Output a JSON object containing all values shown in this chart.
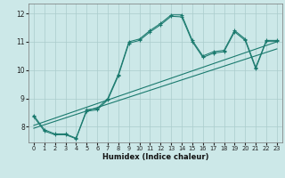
{
  "xlabel": "Humidex (Indice chaleur)",
  "xlim": [
    -0.5,
    23.5
  ],
  "ylim": [
    7.45,
    12.35
  ],
  "xticks": [
    0,
    1,
    2,
    3,
    4,
    5,
    6,
    7,
    8,
    9,
    10,
    11,
    12,
    13,
    14,
    15,
    16,
    17,
    18,
    19,
    20,
    21,
    22,
    23
  ],
  "yticks": [
    8,
    9,
    10,
    11,
    12
  ],
  "bg_color": "#cce8e8",
  "line_color": "#1a7a6e",
  "grid_color": "#aacccc",
  "curve1": {
    "x": [
      0,
      1,
      2,
      3,
      4,
      5,
      6,
      7,
      8,
      9,
      10,
      11,
      12,
      13,
      14,
      15,
      16,
      17,
      18,
      19,
      20,
      21,
      22,
      23
    ],
    "y": [
      8.4,
      7.9,
      7.75,
      7.75,
      7.6,
      8.6,
      8.65,
      9.0,
      9.85,
      11.0,
      11.1,
      11.4,
      11.65,
      11.95,
      11.95,
      11.05,
      10.5,
      10.65,
      10.7,
      11.4,
      11.1,
      10.1,
      11.05,
      11.05
    ]
  },
  "curve2": {
    "x": [
      0,
      1,
      2,
      3,
      4,
      5,
      6,
      7,
      8,
      9,
      10,
      11,
      12,
      13,
      14,
      15,
      16,
      17,
      18,
      19,
      20,
      21,
      22,
      23
    ],
    "y": [
      8.35,
      7.85,
      7.72,
      7.72,
      7.58,
      8.55,
      8.6,
      8.95,
      9.8,
      10.95,
      11.05,
      11.35,
      11.6,
      11.9,
      11.88,
      11.0,
      10.45,
      10.6,
      10.65,
      11.35,
      11.05,
      10.05,
      11.02,
      11.02
    ]
  },
  "regression1": {
    "x": [
      0,
      23
    ],
    "y": [
      7.95,
      10.75
    ]
  },
  "regression2": {
    "x": [
      0,
      23
    ],
    "y": [
      8.05,
      11.0
    ]
  }
}
